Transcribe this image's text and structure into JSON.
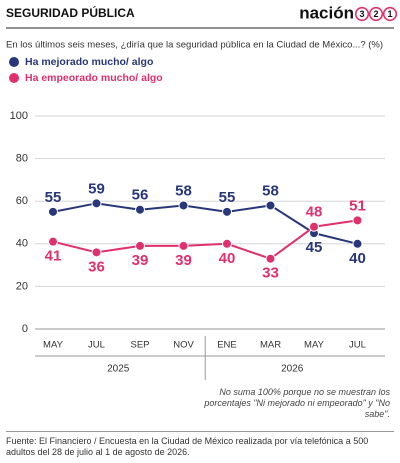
{
  "header": {
    "title": "SEGURIDAD PÚBLICA",
    "logo": {
      "text": "nación",
      "digits": [
        "3",
        "2",
        "1"
      ]
    }
  },
  "chart_data": {
    "type": "line",
    "subtitle": "En los últimos seis meses, ¿diría que la seguridad pública en la Ciudad de México...? (%)",
    "categories": [
      "MAY",
      "JUL",
      "SEP",
      "NOV",
      "ENE",
      "MAR",
      "MAY",
      "JUL"
    ],
    "year_labels": [
      "2025",
      "2026"
    ],
    "series": [
      {
        "name": "Ha mejorado mucho/ algo",
        "color": "#28377a",
        "values": [
          55,
          59,
          56,
          58,
          55,
          58,
          45,
          40
        ]
      },
      {
        "name": "Ha empeorado mucho/ algo",
        "color": "#e0306e",
        "values": [
          41,
          36,
          39,
          39,
          40,
          33,
          48,
          51
        ]
      }
    ],
    "ylim": [
      0,
      100
    ],
    "yticks": [
      0,
      20,
      40,
      60,
      80,
      100
    ],
    "grid": true,
    "note": "No suma 100% porque no se muestran los porcentajes \"Ni mejorado ni empeorado\" y \"No sabe\".",
    "source": "Fuente: El Financiero /  Encuesta en la Ciudad de México realizada por vía telefónica a 500 adultos del 28 de julio al 1 de agosto de 2026."
  }
}
